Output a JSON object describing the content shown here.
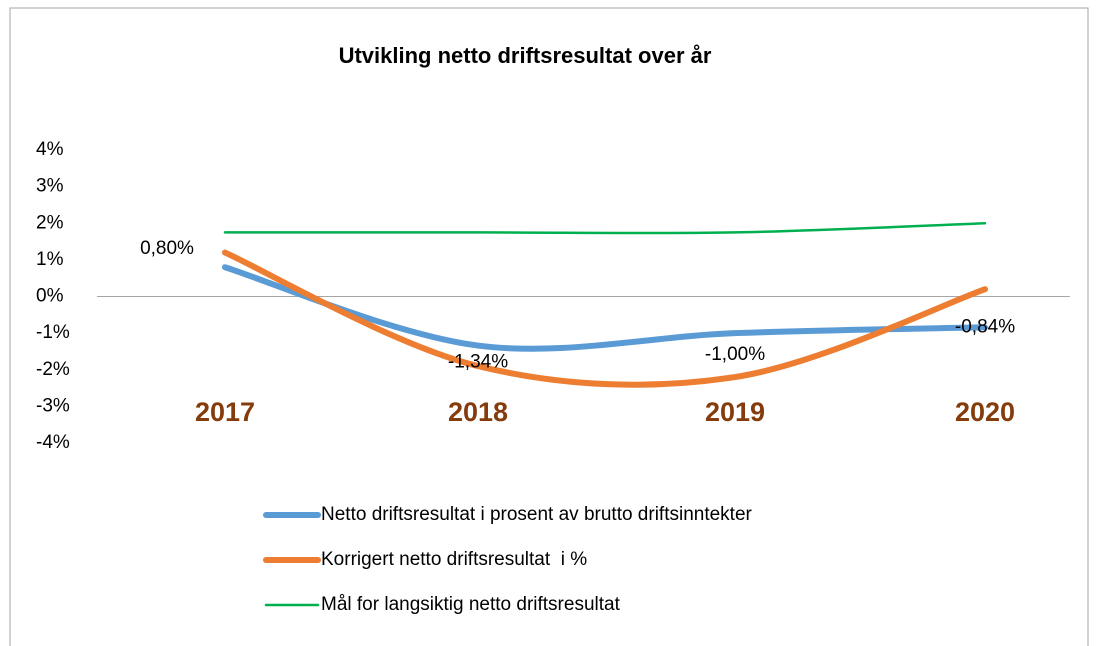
{
  "chart_data": {
    "type": "line",
    "title": "Utvikling netto driftsresultat over år",
    "categories": [
      "2017",
      "2018",
      "2019",
      "2020"
    ],
    "series": [
      {
        "name": "Netto driftsresultat i prosent av brutto driftsinntekter",
        "color": "#5b9bd5",
        "values": [
          0.8,
          -1.34,
          -1.0,
          -0.84
        ],
        "value_labels": [
          "0,80%",
          "-1,34%",
          "-1,00%",
          "-0,84%"
        ]
      },
      {
        "name": "Korrigert netto driftsresultat  i %",
        "color": "#ed7d31",
        "values": [
          1.2,
          -1.9,
          -2.2,
          0.2
        ]
      },
      {
        "name": "Mål for langsiktig netto driftsresultat",
        "color": "#00b050",
        "values": [
          1.75,
          1.75,
          1.75,
          2.0
        ]
      }
    ],
    "ylim": [
      -4,
      4
    ],
    "yticks": [
      {
        "value": 4,
        "label": "4%"
      },
      {
        "value": 3,
        "label": "3%"
      },
      {
        "value": 2,
        "label": "2%"
      },
      {
        "value": 1,
        "label": "1%"
      },
      {
        "value": 0,
        "label": "0%"
      },
      {
        "value": -1,
        "label": "-1%"
      },
      {
        "value": -2,
        "label": "-2%"
      },
      {
        "value": -3,
        "label": "-3%"
      },
      {
        "value": -4,
        "label": "-4%"
      }
    ],
    "smooth": true,
    "legend": "bottom"
  }
}
